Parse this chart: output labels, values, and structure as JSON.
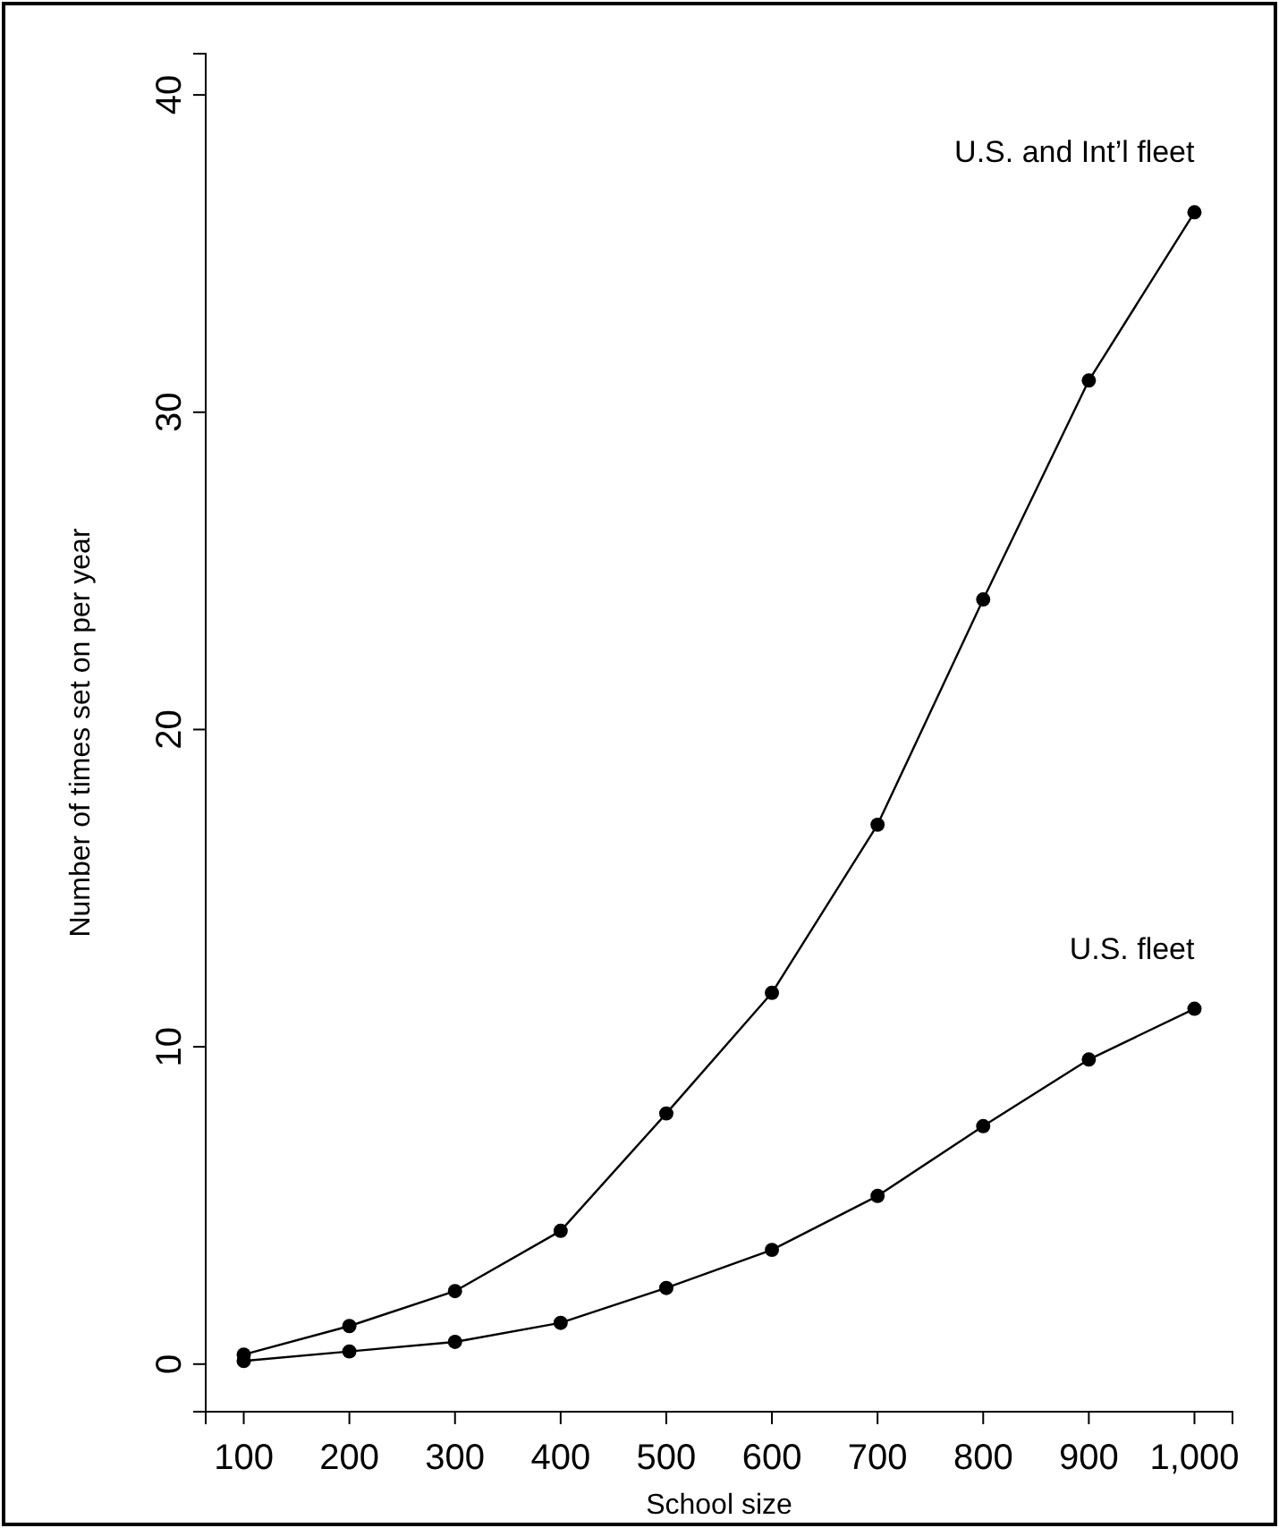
{
  "chart_data": {
    "type": "line",
    "xlabel": "School size",
    "ylabel": "Number of times set on per year",
    "xlim": [
      64,
      1036
    ],
    "ylim": [
      -1.5,
      41.3
    ],
    "xticks": [
      100,
      200,
      300,
      400,
      500,
      600,
      700,
      800,
      900,
      {
        "value": 1000,
        "label": "1,000"
      }
    ],
    "yticks": [
      0,
      10,
      20,
      30,
      40
    ],
    "x": [
      100,
      200,
      300,
      400,
      500,
      600,
      700,
      800,
      900,
      1000
    ],
    "marker": "circle",
    "series": [
      {
        "name": "U.S. and Int’l fleet",
        "color": "#000000",
        "values": [
          0.3,
          1.2,
          2.3,
          4.2,
          7.9,
          11.7,
          17.0,
          24.1,
          31.0,
          36.3
        ]
      },
      {
        "name": "U.S. fleet",
        "color": "#000000",
        "values": [
          0.1,
          0.4,
          0.7,
          1.3,
          2.4,
          3.6,
          5.3,
          7.5,
          9.6,
          11.2
        ]
      }
    ]
  }
}
